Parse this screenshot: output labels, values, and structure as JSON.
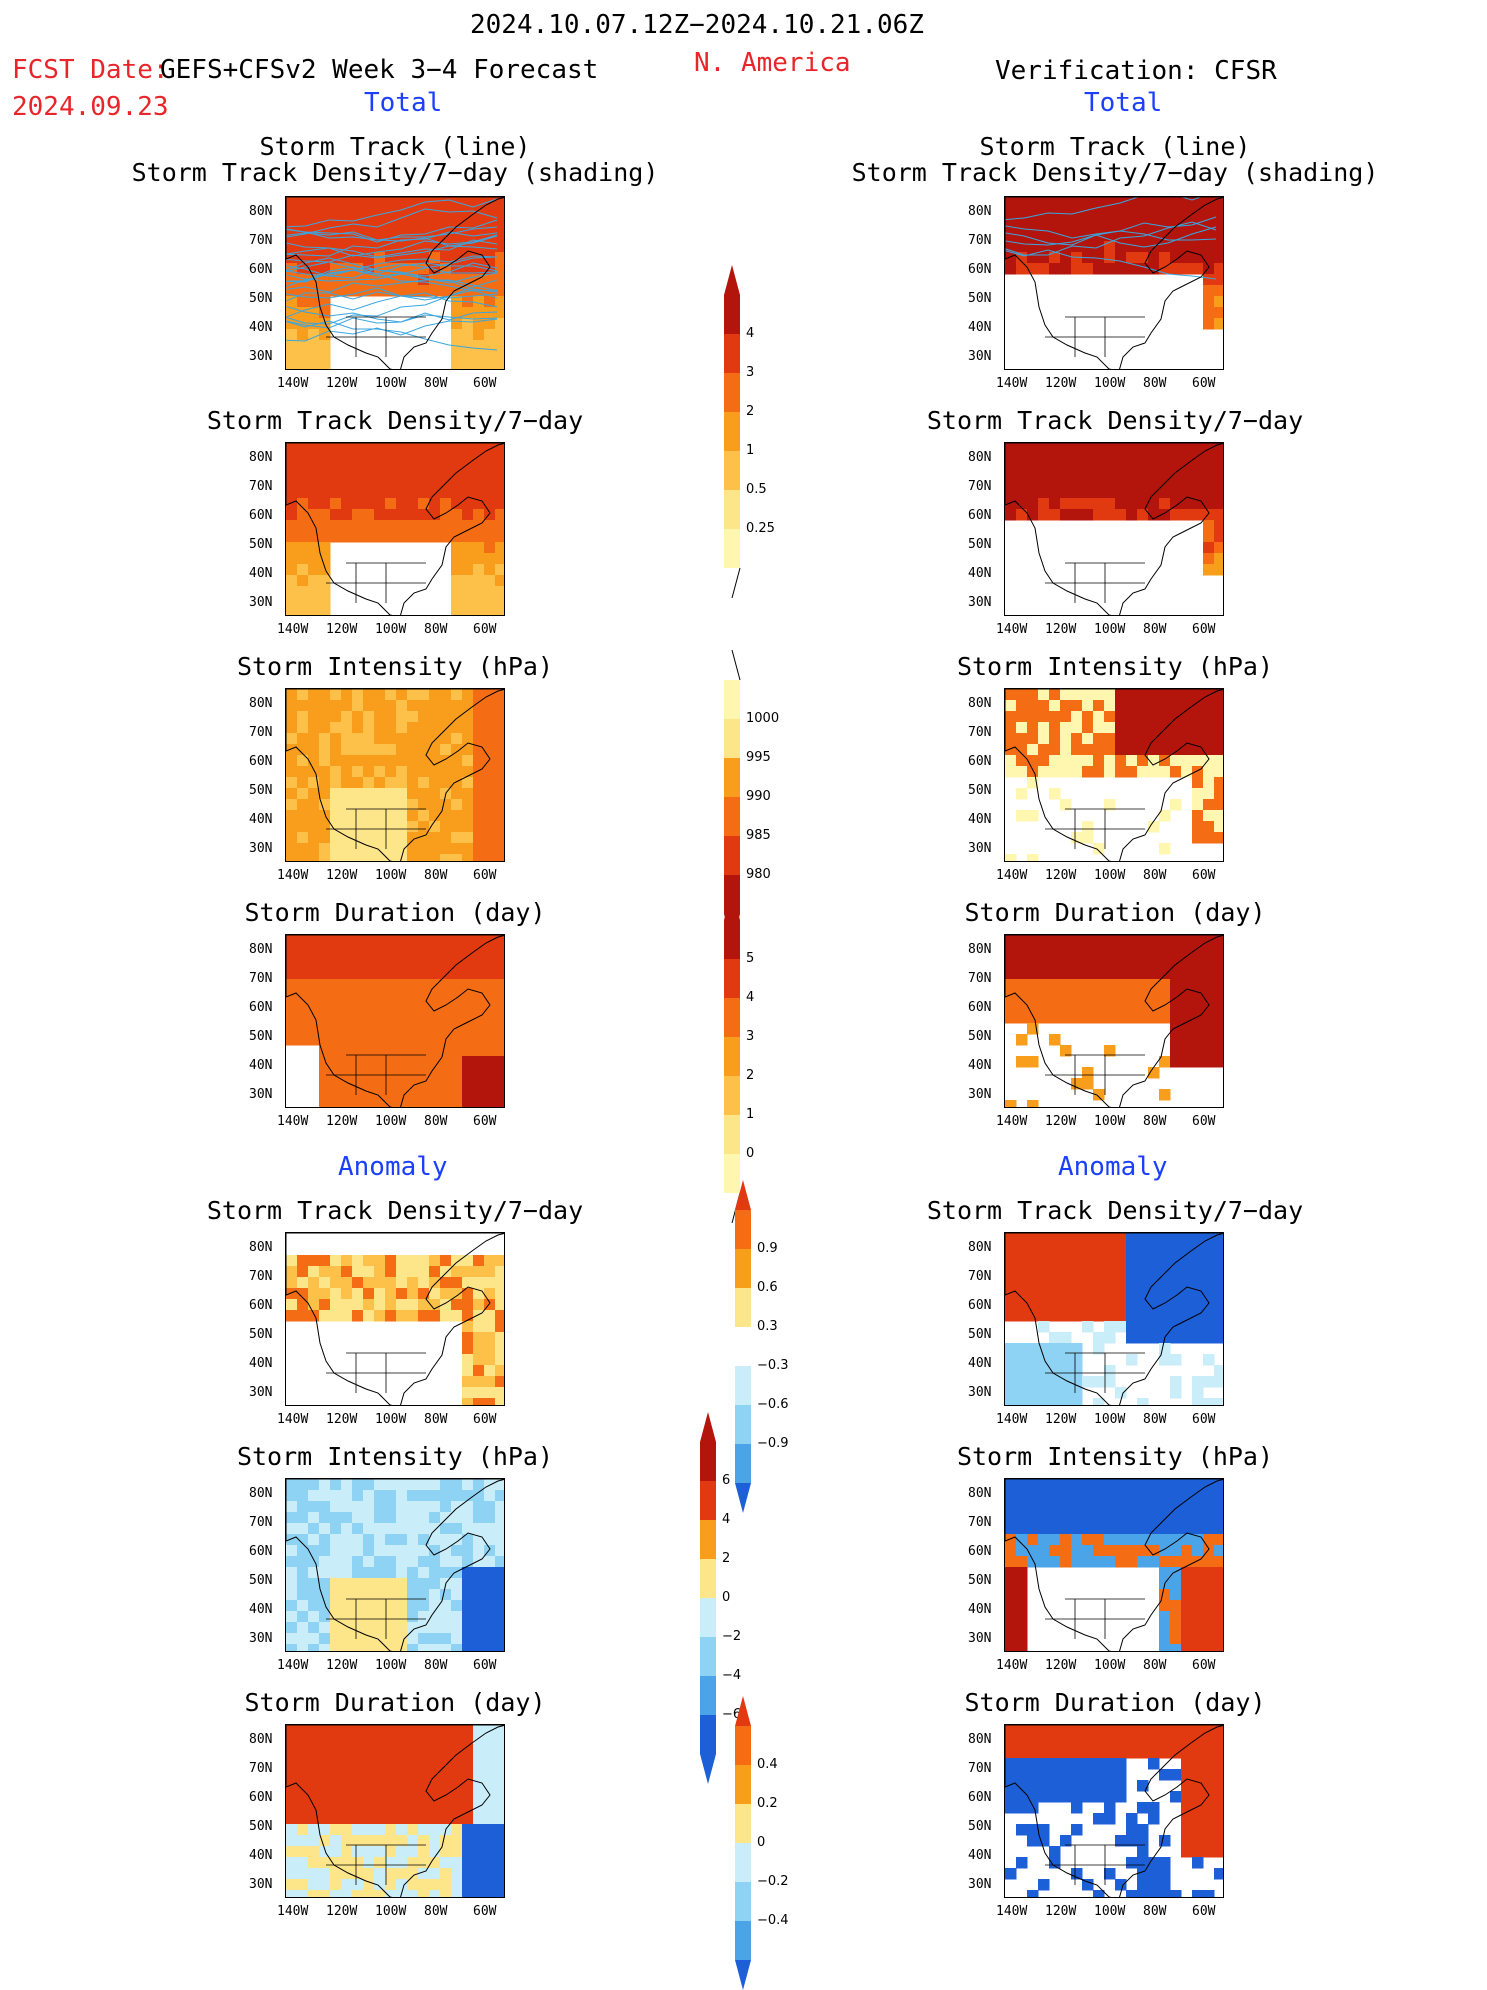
{
  "header": {
    "date_range": "2024.10.07.12Z−2024.10.21.06Z",
    "fcst_label": "FCST Date:",
    "fcst_model": "GEFS+CFSv2 Week 3−4 Forecast",
    "fcst_date": "2024.09.23",
    "region": "N. America",
    "verification": "Verification: CFSR",
    "left_total": "Total",
    "right_total": "Total",
    "left_anomaly": "Anomaly",
    "right_anomaly": "Anomaly"
  },
  "panel_titles": {
    "track_line": "Storm Track (line)",
    "track_shading": "Storm Track Density/7−day (shading)",
    "density": "Storm Track Density/7−day",
    "intensity": "Storm Intensity (hPa)",
    "duration": "Storm Duration (day)"
  },
  "lat_labels": [
    "80N",
    "70N",
    "60N",
    "50N",
    "40N",
    "30N"
  ],
  "lon_labels": [
    "140W",
    "120W",
    "100W",
    "80W",
    "60W"
  ],
  "colorbars": {
    "density_total": [
      "4",
      "3",
      "2",
      "1",
      "0.5",
      "0.25"
    ],
    "intensity_total": [
      "1000",
      "995",
      "990",
      "985",
      "980"
    ],
    "duration_total": [
      "5",
      "4",
      "3",
      "2",
      "1",
      "0"
    ],
    "density_anom": [
      "0.9",
      "0.6",
      "0.3",
      "−0.3",
      "−0.6",
      "−0.9"
    ],
    "intensity_anom": [
      "6",
      "4",
      "2",
      "0",
      "−2",
      "−4",
      "−6"
    ],
    "duration_anom": [
      "0.4",
      "0.2",
      "0",
      "−0.2",
      "−0.4"
    ]
  },
  "colors": {
    "title_red": "#e8262a",
    "label_blue": "#1a3fff",
    "warm_scale": [
      "#fff7b0",
      "#fde58a",
      "#fdc049",
      "#f99d1c",
      "#f46d14",
      "#e23a10",
      "#b3150c"
    ],
    "cool_scale": [
      "#c9eefa",
      "#8fd3f4",
      "#4ba3e8",
      "#1d5fd6"
    ]
  }
}
